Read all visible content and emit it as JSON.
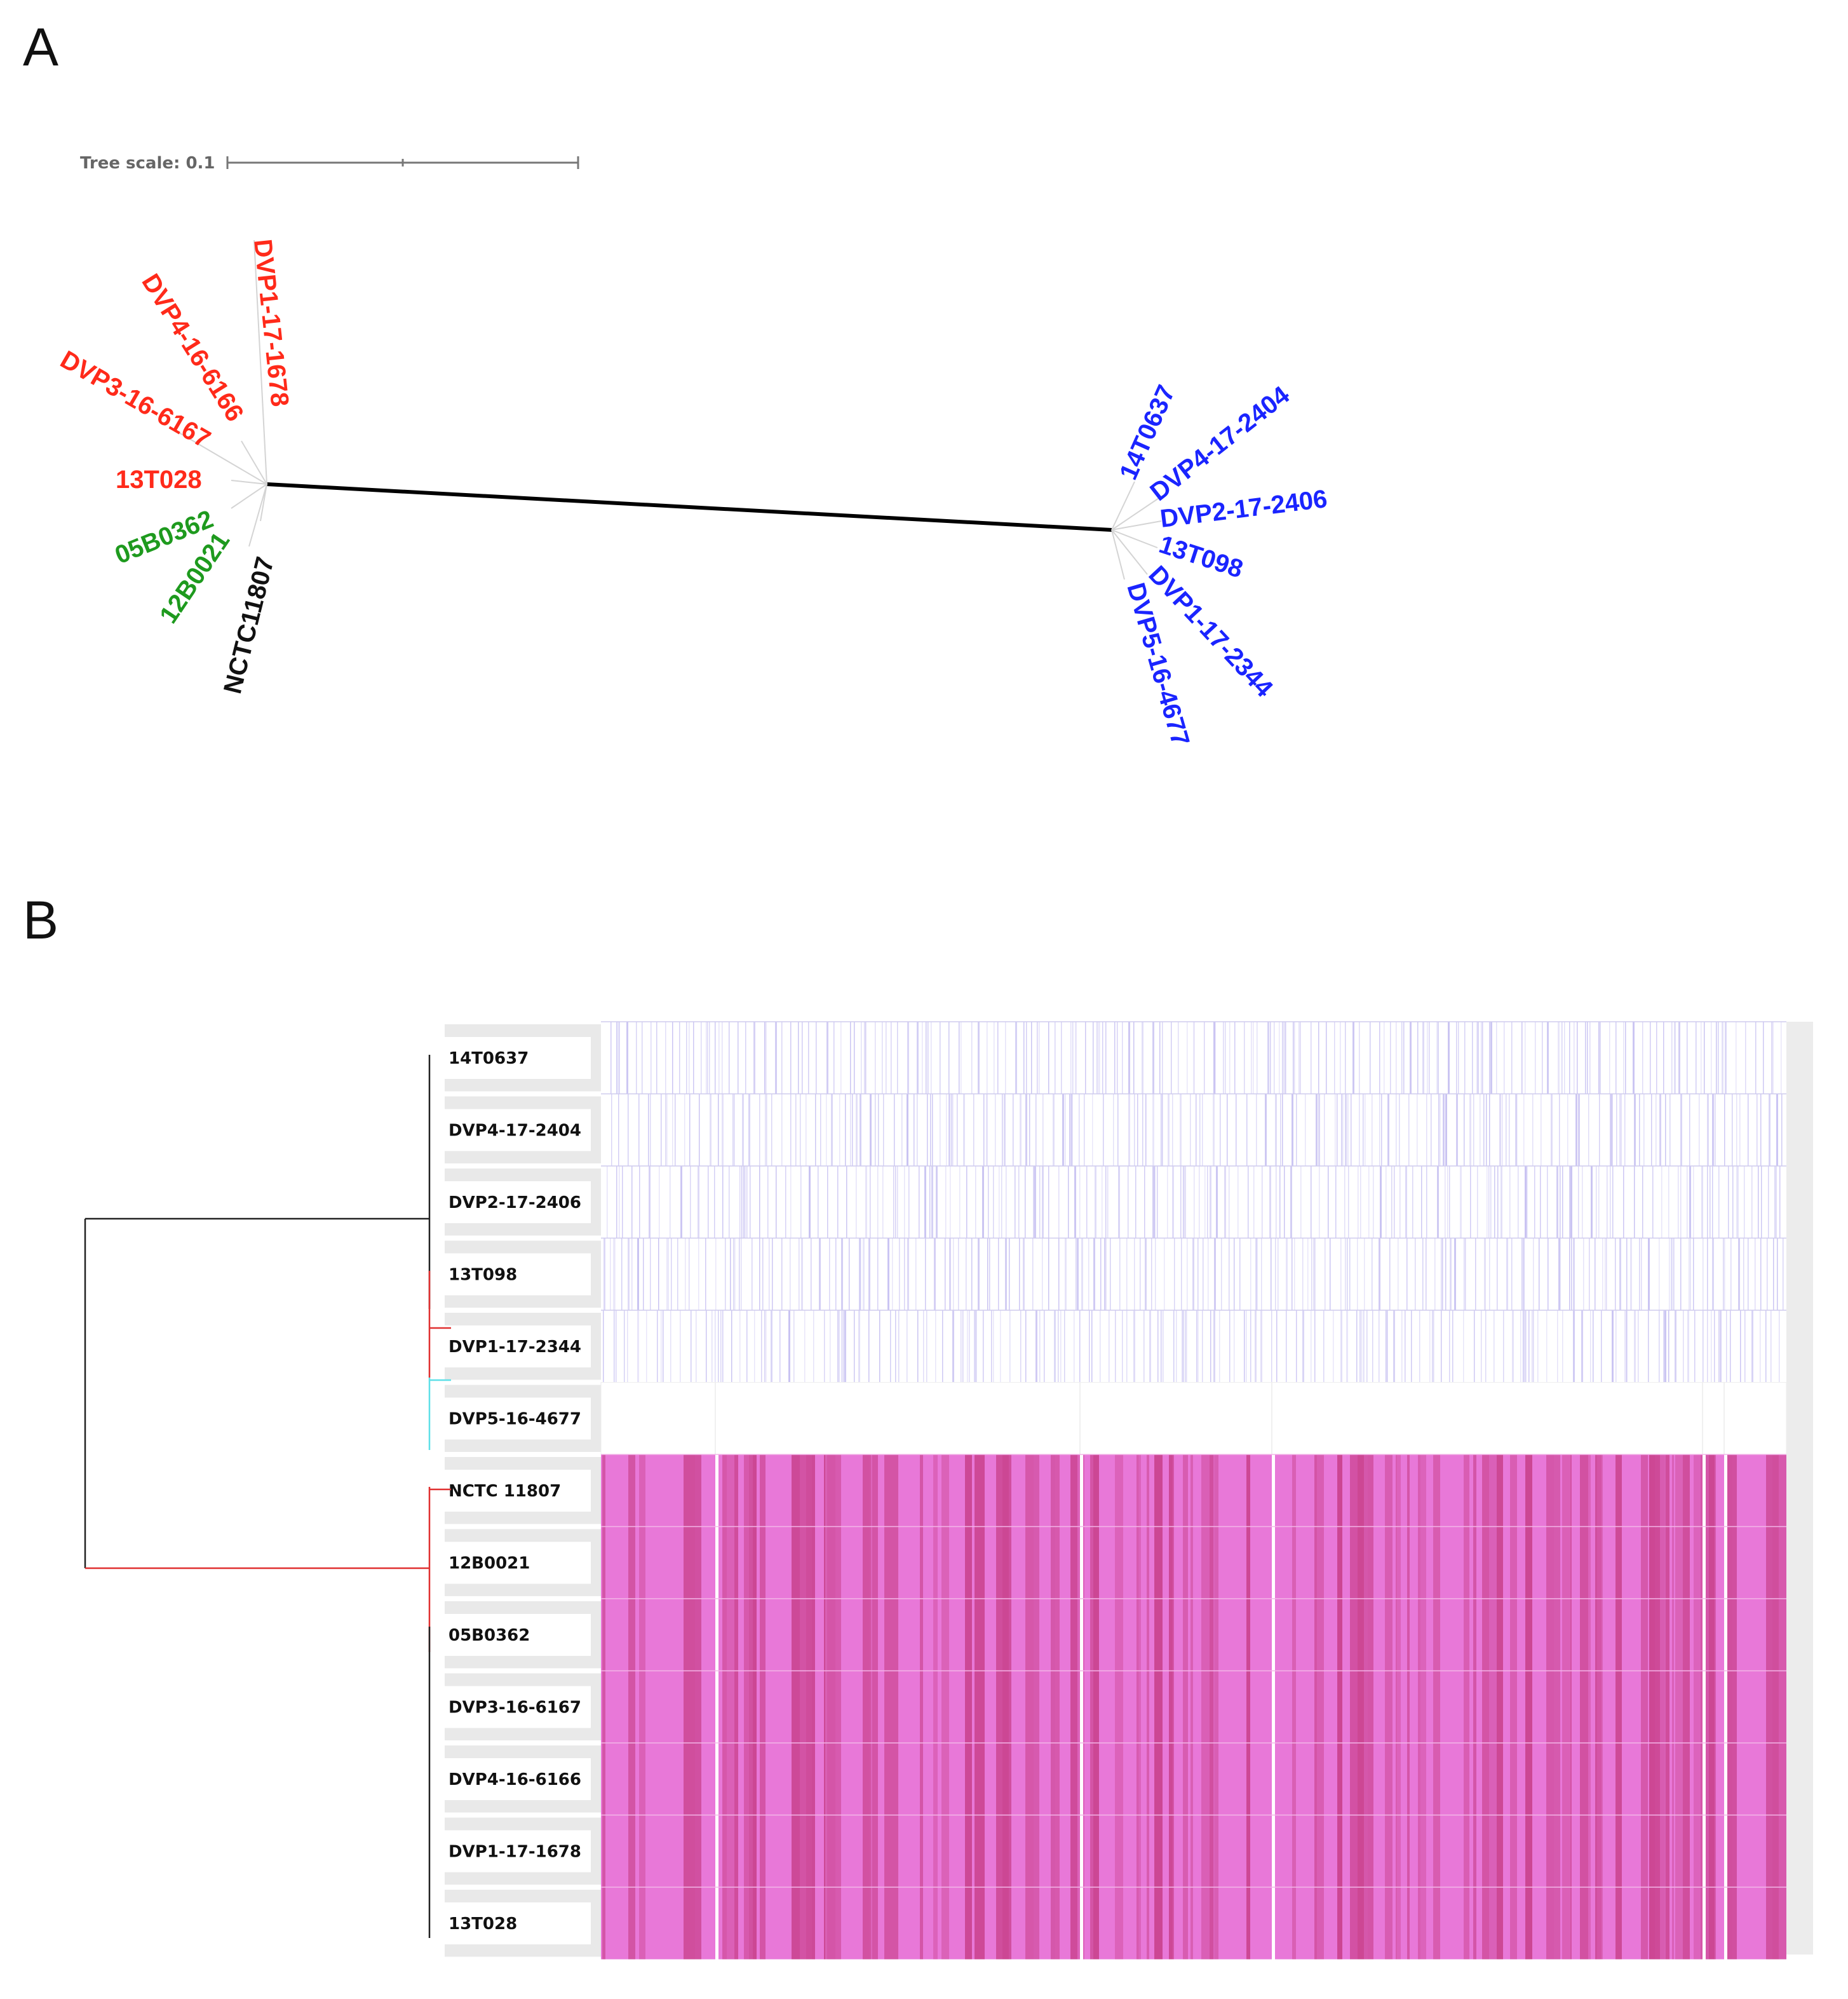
{
  "panels": {
    "a": "A",
    "b": "B"
  },
  "tree_scale": {
    "label": "Tree scale: 0.1"
  },
  "colors": {
    "red": "#ff2a1a",
    "green": "#1e9a1e",
    "blue": "#1a24ff",
    "black": "#111111",
    "lavender": "#c9c3f2",
    "magenta_light": "#e878d8",
    "magenta_dark": "#c8408a",
    "clade_black": "#222222",
    "clade_red": "#e03030",
    "clade_cyan": "#5fe0e8"
  },
  "panel_a": {
    "left_cluster": [
      {
        "id": "DVP1-17-1678",
        "color": "red"
      },
      {
        "id": "DVP4-16-6166",
        "color": "red"
      },
      {
        "id": "DVP3-16-6167",
        "color": "red"
      },
      {
        "id": "13T028",
        "color": "red"
      },
      {
        "id": "05B0362",
        "color": "green"
      },
      {
        "id": "12B0021",
        "color": "green"
      },
      {
        "id": "NCTC11807",
        "color": "black"
      }
    ],
    "right_cluster": [
      {
        "id": "14T0637",
        "color": "blue"
      },
      {
        "id": "DVP4-17-2404",
        "color": "blue"
      },
      {
        "id": "DVP2-17-2406",
        "color": "blue"
      },
      {
        "id": "13T098",
        "color": "blue"
      },
      {
        "id": "DVP1-17-2344",
        "color": "blue"
      },
      {
        "id": "DVP5-16-4677",
        "color": "blue"
      }
    ]
  },
  "panel_b": {
    "rows": [
      {
        "label": "14T0637",
        "group": "lavender"
      },
      {
        "label": "DVP4-17-2404",
        "group": "lavender"
      },
      {
        "label": "DVP2-17-2406",
        "group": "lavender"
      },
      {
        "label": "13T098",
        "group": "lavender"
      },
      {
        "label": "DVP1-17-2344",
        "group": "lavender"
      },
      {
        "label": "DVP5-16-4677",
        "group": "empty"
      },
      {
        "label": "NCTC 11807",
        "group": "magenta"
      },
      {
        "label": "12B0021",
        "group": "magenta"
      },
      {
        "label": "05B0362",
        "group": "magenta"
      },
      {
        "label": "DVP3-16-6167",
        "group": "magenta"
      },
      {
        "label": "DVP4-16-6166",
        "group": "magenta"
      },
      {
        "label": "DVP1-17-1678",
        "group": "magenta"
      },
      {
        "label": "13T028",
        "group": "magenta"
      }
    ]
  }
}
